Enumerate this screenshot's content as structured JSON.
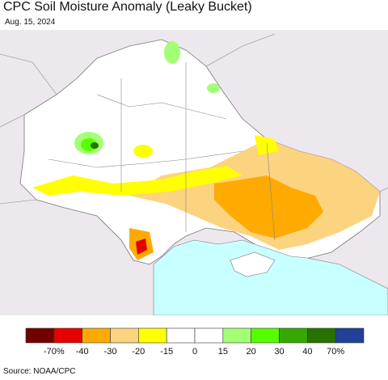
{
  "header": {
    "title": "CPC Soil Moisture Anomaly (Leaky Bucket)",
    "date": "Aug. 15, 2024"
  },
  "legend": {
    "colors": [
      "#730000",
      "#e60000",
      "#ffaa00",
      "#fcd37f",
      "#ffff00",
      "#ffffff",
      "#ffffff",
      "#a3ff73",
      "#55ff00",
      "#38a800",
      "#267300",
      "#21409a"
    ],
    "labels": [
      "-70%",
      "-40",
      "-30",
      "-20",
      "-15",
      "0",
      "15",
      "20",
      "30",
      "40",
      "70%"
    ]
  },
  "footer": {
    "source": "Source: NOAA/CPC"
  }
}
